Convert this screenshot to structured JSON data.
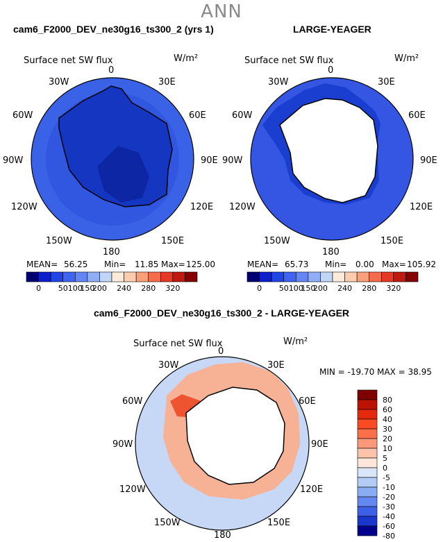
{
  "season": "ANN",
  "panels": [
    {
      "title": "cam6_F2000_DEV_ne30g16_ts300_2 (yrs 1)",
      "variable": "Surface net SW flux",
      "units": "W/m²",
      "stats": {
        "mean_label": "MEAN=",
        "mean": "56.25",
        "min_label": "Min=",
        "min": "11.85",
        "max_label": "Max=",
        "max": "125.00"
      }
    },
    {
      "title": "LARGE-YEAGER",
      "variable": "Surface net SW flux",
      "units": "W/m²",
      "stats": {
        "mean_label": "MEAN=",
        "mean": "65.73",
        "min_label": "Min=",
        "min": "0.00",
        "max_label": "Max=",
        "max": "105.92"
      }
    }
  ],
  "diff_panel": {
    "title": "cam6_F2000_DEV_ne30g16_ts300_2 - LARGE-YEAGER",
    "variable": "Surface net SW flux",
    "units": "W/m²",
    "stats_line": "MIN = -19.70 MAX =  38.95"
  },
  "longitude_labels": [
    "0",
    "30E",
    "60E",
    "90E",
    "120E",
    "150E",
    "180",
    "150W",
    "120W",
    "90W",
    "60W",
    "30W"
  ],
  "colorbar_top": {
    "labels": [
      "0",
      "50",
      "100",
      "150",
      "200",
      "240",
      "280",
      "320"
    ],
    "colors": [
      "#000070",
      "#0c1fc8",
      "#1f45e5",
      "#3f63f2",
      "#6486f4",
      "#90aef6",
      "#c0d6f6",
      "#fdebd9",
      "#fcccae",
      "#f99f79",
      "#f36d4c",
      "#e43925",
      "#c01910",
      "#860000"
    ]
  },
  "colorbar_diff": {
    "labels": [
      "80",
      "60",
      "40",
      "30",
      "20",
      "10",
      "5",
      "0",
      "-5",
      "-10",
      "-20",
      "-30",
      "-40",
      "-60",
      "-80"
    ],
    "colors": [
      "#7e0000",
      "#bb1202",
      "#e42a0d",
      "#fb4b23",
      "#fb7049",
      "#f9997a",
      "#fcc4ab",
      "#fde6da",
      "#d8e6f8",
      "#b3ccf6",
      "#8aacf3",
      "#6388f1",
      "#3d60e6",
      "#1a37cb",
      "#00008c"
    ]
  },
  "colors": {
    "fill_a_ocean": "#3157e0",
    "fill_a_ocean_outer": "#3a62e6",
    "fill_a_ice": "#1436c0",
    "fill_a_deep": "#0c26a4",
    "fill_b_ocean": "#3456e2",
    "fill_b_land": "#ffffff",
    "diff_base": "#c6d8f5",
    "diff_warm": "#f7b295",
    "diff_hot": "#ee5430"
  }
}
